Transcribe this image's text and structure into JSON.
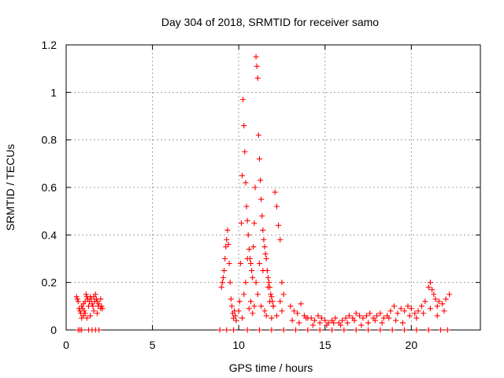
{
  "chart_data": {
    "type": "scatter",
    "title": "Day 304 of 2018, SRMTID for receiver samo",
    "xlabel": "GPS time / hours",
    "ylabel": "SRMTID / TECUs",
    "xlim": [
      0,
      24
    ],
    "ylim": [
      0,
      1.2
    ],
    "x_ticks": [
      0,
      5,
      10,
      15,
      20
    ],
    "x_tick_labels": [
      "0",
      "5",
      "10",
      "15",
      "20"
    ],
    "y_ticks": [
      0,
      0.2,
      0.4,
      0.6,
      0.8,
      1.0,
      1.2
    ],
    "y_tick_labels": [
      "0",
      "0.2",
      "0.4",
      "0.6",
      "0.8",
      "1",
      "1.2"
    ],
    "grid": true,
    "marker": "+",
    "color": "#ff0000",
    "series": [
      {
        "name": "SRMTID",
        "x": [
          0.6,
          0.65,
          0.7,
          0.75,
          0.8,
          0.85,
          0.9,
          0.95,
          1.0,
          1.05,
          1.1,
          1.15,
          1.2,
          1.25,
          1.3,
          1.35,
          1.4,
          1.45,
          1.5,
          1.55,
          1.6,
          1.65,
          1.7,
          1.75,
          1.8,
          1.85,
          1.9,
          2.0,
          2.05,
          2.1,
          0.9,
          1.0,
          1.1,
          1.2,
          1.4,
          1.6,
          1.8,
          2.0,
          9.0,
          9.05,
          9.1,
          9.15,
          9.2,
          9.25,
          9.3,
          9.35,
          9.4,
          9.45,
          9.5,
          9.55,
          9.6,
          9.65,
          9.7,
          9.75,
          9.8,
          9.85,
          10.0,
          10.05,
          10.1,
          10.15,
          10.2,
          10.25,
          10.3,
          10.35,
          10.4,
          10.45,
          10.5,
          10.55,
          10.6,
          10.65,
          10.7,
          10.75,
          10.8,
          10.85,
          10.9,
          10.95,
          11.0,
          11.05,
          11.1,
          11.15,
          11.2,
          11.25,
          11.3,
          11.35,
          11.4,
          11.45,
          11.5,
          11.55,
          11.6,
          11.65,
          11.7,
          11.75,
          11.8,
          11.85,
          11.9,
          11.95,
          12.0,
          12.1,
          12.2,
          12.3,
          12.4,
          12.5,
          12.6,
          10.2,
          10.3,
          10.4,
          10.5,
          10.6,
          10.7,
          10.8,
          10.9,
          11.0,
          11.1,
          11.2,
          11.3,
          11.4,
          11.5,
          11.6,
          11.7,
          11.8,
          11.9,
          12.0,
          12.2,
          12.4,
          12.5,
          13.0,
          13.2,
          13.4,
          13.6,
          13.8,
          14.0,
          14.2,
          14.4,
          14.6,
          14.8,
          15.0,
          15.2,
          15.4,
          15.6,
          15.8,
          16.0,
          16.2,
          16.4,
          16.6,
          16.8,
          17.0,
          17.2,
          17.4,
          17.6,
          17.8,
          18.0,
          18.2,
          18.4,
          18.6,
          18.8,
          19.0,
          19.2,
          19.4,
          19.6,
          19.8,
          20.0,
          20.2,
          20.4,
          20.6,
          20.8,
          21.0,
          21.1,
          21.2,
          21.3,
          21.4,
          21.5,
          21.6,
          21.8,
          22.0,
          22.2,
          13.1,
          13.5,
          13.9,
          14.3,
          14.7,
          15.1,
          15.5,
          15.9,
          16.3,
          16.7,
          17.1,
          17.5,
          17.9,
          18.3,
          18.7,
          19.1,
          19.5,
          19.9,
          20.3,
          20.7,
          21.1,
          21.5,
          21.9,
          0.7,
          0.8,
          0.9,
          1.3,
          1.5,
          1.7,
          1.9,
          8.9,
          9.3,
          9.7,
          10.5,
          11.2,
          11.9,
          12.6,
          13.3,
          14.0,
          14.7,
          15.4,
          16.1,
          16.8,
          17.5,
          18.2,
          18.9,
          19.6,
          20.3,
          21.0,
          21.7,
          22.1
        ],
        "y": [
          0.14,
          0.13,
          0.12,
          0.09,
          0.08,
          0.07,
          0.1,
          0.09,
          0.11,
          0.08,
          0.12,
          0.15,
          0.14,
          0.13,
          0.1,
          0.12,
          0.14,
          0.13,
          0.11,
          0.1,
          0.14,
          0.12,
          0.15,
          0.13,
          0.12,
          0.1,
          0.11,
          0.13,
          0.1,
          0.09,
          0.05,
          0.06,
          0.07,
          0.05,
          0.06,
          0.08,
          0.07,
          0.09,
          0.18,
          0.2,
          0.22,
          0.25,
          0.3,
          0.35,
          0.38,
          0.42,
          0.36,
          0.28,
          0.2,
          0.13,
          0.1,
          0.07,
          0.05,
          0.08,
          0.06,
          0.04,
          0.08,
          0.12,
          0.28,
          0.45,
          0.65,
          0.97,
          0.86,
          0.75,
          0.62,
          0.52,
          0.46,
          0.4,
          0.34,
          0.3,
          0.28,
          0.25,
          0.22,
          0.35,
          0.45,
          0.6,
          1.15,
          1.11,
          1.06,
          0.82,
          0.72,
          0.63,
          0.55,
          0.48,
          0.42,
          0.38,
          0.35,
          0.32,
          0.3,
          0.25,
          0.22,
          0.2,
          0.18,
          0.15,
          0.14,
          0.12,
          0.1,
          0.58,
          0.52,
          0.44,
          0.38,
          0.2,
          0.15,
          0.05,
          0.15,
          0.2,
          0.3,
          0.09,
          0.12,
          0.07,
          0.1,
          0.2,
          0.15,
          0.28,
          0.1,
          0.25,
          0.08,
          0.06,
          0.18,
          0.12,
          0.05,
          0.1,
          0.06,
          0.12,
          0.08,
          0.1,
          0.08,
          0.07,
          0.11,
          0.06,
          0.05,
          0.05,
          0.04,
          0.06,
          0.05,
          0.04,
          0.03,
          0.04,
          0.05,
          0.03,
          0.04,
          0.05,
          0.06,
          0.05,
          0.07,
          0.06,
          0.05,
          0.06,
          0.07,
          0.05,
          0.06,
          0.07,
          0.05,
          0.06,
          0.08,
          0.1,
          0.07,
          0.09,
          0.08,
          0.1,
          0.09,
          0.07,
          0.08,
          0.1,
          0.12,
          0.18,
          0.2,
          0.17,
          0.15,
          0.13,
          0.1,
          0.12,
          0.11,
          0.13,
          0.15,
          0.04,
          0.03,
          0.05,
          0.02,
          0.03,
          0.02,
          0.03,
          0.02,
          0.03,
          0.04,
          0.02,
          0.03,
          0.04,
          0.03,
          0.05,
          0.04,
          0.03,
          0.06,
          0.05,
          0.07,
          0.09,
          0.06,
          0.08,
          0.0,
          0.0,
          0.0,
          0.0,
          0.0,
          0.0,
          0.0,
          0.0,
          0.0,
          0.0,
          0.0,
          0.0,
          0.0,
          0.0,
          0.0,
          0.0,
          0.0,
          0.0,
          0.0,
          0.0,
          0.0,
          0.0,
          0.0,
          0.0,
          0.0,
          0.0,
          0.0,
          0.0
        ]
      }
    ]
  }
}
